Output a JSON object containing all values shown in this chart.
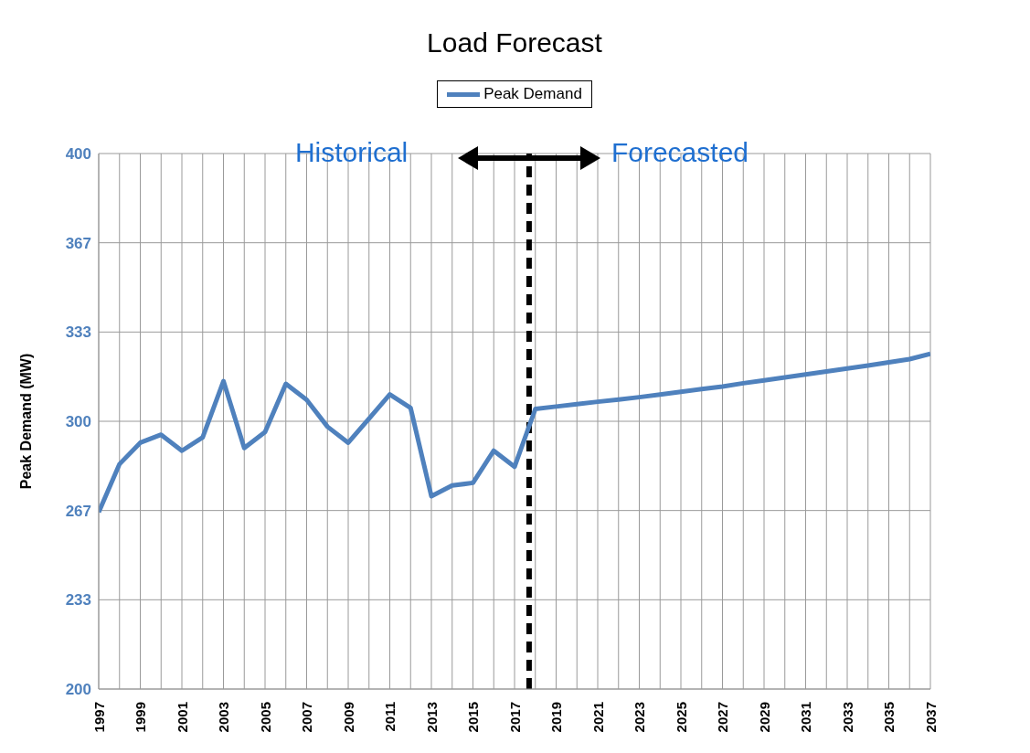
{
  "chart_data": {
    "type": "line",
    "title": "Load Forecast",
    "ylabel": "Peak Demand (MW)",
    "x": [
      1997,
      1998,
      1999,
      2000,
      2001,
      2002,
      2003,
      2004,
      2005,
      2006,
      2007,
      2008,
      2009,
      2010,
      2011,
      2012,
      2013,
      2014,
      2015,
      2016,
      2017,
      2018,
      2019,
      2020,
      2021,
      2022,
      2023,
      2024,
      2025,
      2026,
      2027,
      2028,
      2029,
      2030,
      2031,
      2032,
      2033,
      2034,
      2035,
      2036,
      2037
    ],
    "series": [
      {
        "name": "Peak Demand",
        "color": "#4f81bd",
        "values": [
          266,
          284,
          292,
          295,
          289,
          294,
          315,
          290,
          296,
          314,
          308,
          298,
          292,
          301,
          310,
          305,
          272,
          276,
          277,
          289,
          283,
          304.6,
          305.5,
          306.4,
          307.3,
          308.1,
          309,
          310,
          311,
          312,
          313,
          314.2,
          315.3,
          316.4,
          317.5,
          318.6,
          319.7,
          320.8,
          322,
          323.2,
          325.2
        ]
      }
    ],
    "xlim": [
      1997,
      2037
    ],
    "xticks": [
      1997,
      {
        "value": 1998,
        "label": null
      },
      1999,
      {
        "value": 2000,
        "label": null
      },
      2001,
      {
        "value": 2002,
        "label": null
      },
      2003,
      {
        "value": 2004,
        "label": null
      },
      2005,
      {
        "value": 2006,
        "label": null
      },
      2007,
      {
        "value": 2008,
        "label": null
      },
      2009,
      {
        "value": 2010,
        "label": null
      },
      2011,
      {
        "value": 2012,
        "label": null
      },
      2013,
      {
        "value": 2014,
        "label": null
      },
      2015,
      {
        "value": 2016,
        "label": null
      },
      2017,
      {
        "value": 2018,
        "label": null
      },
      2019,
      {
        "value": 2020,
        "label": null
      },
      2021,
      {
        "value": 2022,
        "label": null
      },
      2023,
      {
        "value": 2024,
        "label": null
      },
      2025,
      {
        "value": 2026,
        "label": null
      },
      2027,
      {
        "value": 2028,
        "label": null
      },
      2029,
      {
        "value": 2030,
        "label": null
      },
      2031,
      {
        "value": 2032,
        "label": null
      },
      2033,
      {
        "value": 2034,
        "label": null
      },
      2035,
      {
        "value": 2036,
        "label": null
      },
      2037
    ],
    "ylim": [
      200,
      400
    ],
    "yticks": [
      200,
      {
        "value": 233.33,
        "label": "233"
      },
      {
        "value": 266.67,
        "label": "267"
      },
      300,
      {
        "value": 333.33,
        "label": "333"
      },
      {
        "value": 366.67,
        "label": "367"
      },
      400
    ],
    "grid": true,
    "legend": "top",
    "marker": "none",
    "line_style": "solid",
    "ref_lines": [
      {
        "axis": "x",
        "value": 2017.7,
        "color": "#000000",
        "line_style": "dashed"
      }
    ],
    "annotations": [
      "Historical",
      "Forecasted"
    ]
  }
}
